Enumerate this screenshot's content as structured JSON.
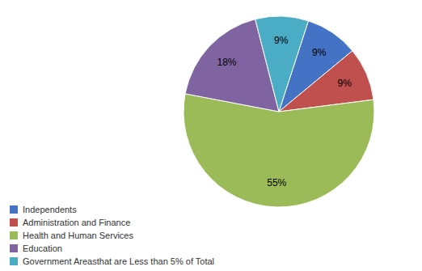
{
  "chart_data": {
    "type": "pie",
    "categories": [
      "Independents",
      "Administration and Finance",
      "Health and Human Services",
      "Education",
      "Government Areasthat are Less than 5% of Total"
    ],
    "values": [
      9,
      9,
      55,
      18,
      9
    ],
    "value_labels": [
      "9%",
      "9%",
      "55%",
      "18%",
      "9%"
    ],
    "colors": [
      "#4472C4",
      "#C0504D",
      "#9BBB59",
      "#8064A2",
      "#4BACC6"
    ],
    "data_labels": true,
    "legend": "lower left"
  }
}
